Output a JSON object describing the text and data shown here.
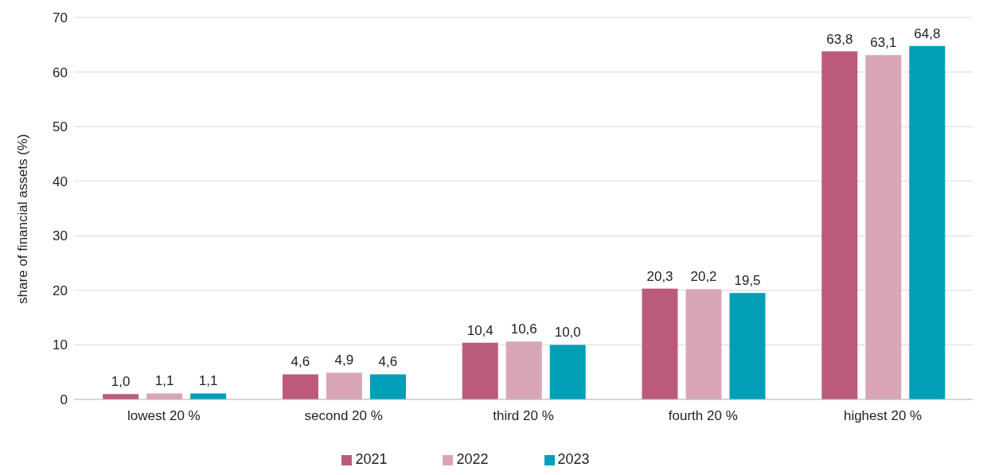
{
  "chart_data": {
    "type": "bar",
    "ylabel": "share of financial assets (%)",
    "categories": [
      "lowest 20 %",
      "second 20 %",
      "third 20 %",
      "fourth 20 %",
      "highest 20 %"
    ],
    "series": [
      {
        "name": "2021",
        "color": "#bc5a7e",
        "values": [
          1.0,
          4.6,
          10.4,
          20.3,
          63.8
        ],
        "value_labels": [
          "1,0",
          "4,6",
          "10,4",
          "20,3",
          "63,8"
        ]
      },
      {
        "name": "2022",
        "color": "#d8a6b6",
        "values": [
          1.1,
          4.9,
          10.6,
          20.2,
          63.1
        ],
        "value_labels": [
          "1,1",
          "4,9",
          "10,6",
          "20,2",
          "63,1"
        ]
      },
      {
        "name": "2023",
        "color": "#009fb8",
        "values": [
          1.1,
          4.6,
          10.0,
          19.5,
          64.8
        ],
        "value_labels": [
          "1,1",
          "4,6",
          "10,0",
          "19,5",
          "64,8"
        ]
      }
    ],
    "ylim": [
      0,
      70
    ],
    "yticks": [
      0,
      10,
      20,
      30,
      40,
      50,
      60,
      70
    ],
    "grid": "y",
    "legend": "bottom"
  }
}
